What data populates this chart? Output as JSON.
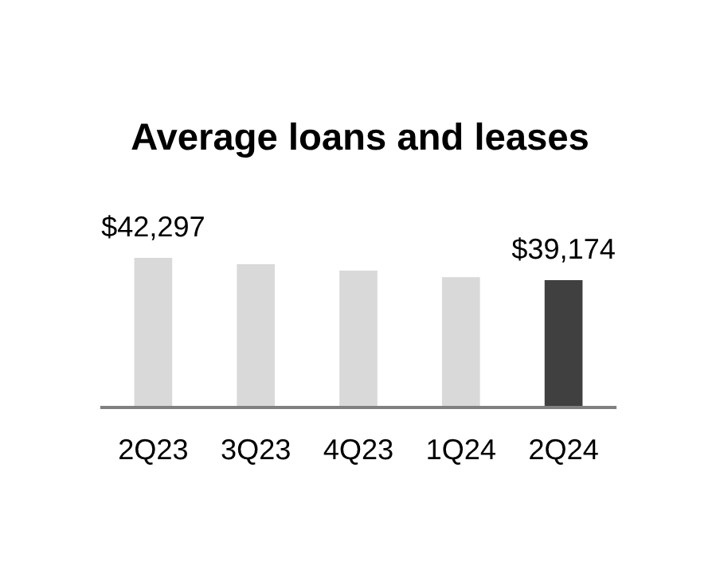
{
  "chart_data": {
    "type": "bar",
    "title": "Average loans and leases",
    "categories": [
      "2Q23",
      "3Q23",
      "4Q23",
      "1Q24",
      "2Q24"
    ],
    "ylim": [
      21300,
      42300
    ],
    "values": [
      42297,
      41400,
      40500,
      39600,
      39174
    ],
    "colors": [
      "#d9d9d9",
      "#d9d9d9",
      "#d9d9d9",
      "#d9d9d9",
      "#404040"
    ],
    "value_labels": [
      "$42,297",
      null,
      null,
      null,
      "$39,174"
    ],
    "grid": false,
    "legend": false
  }
}
